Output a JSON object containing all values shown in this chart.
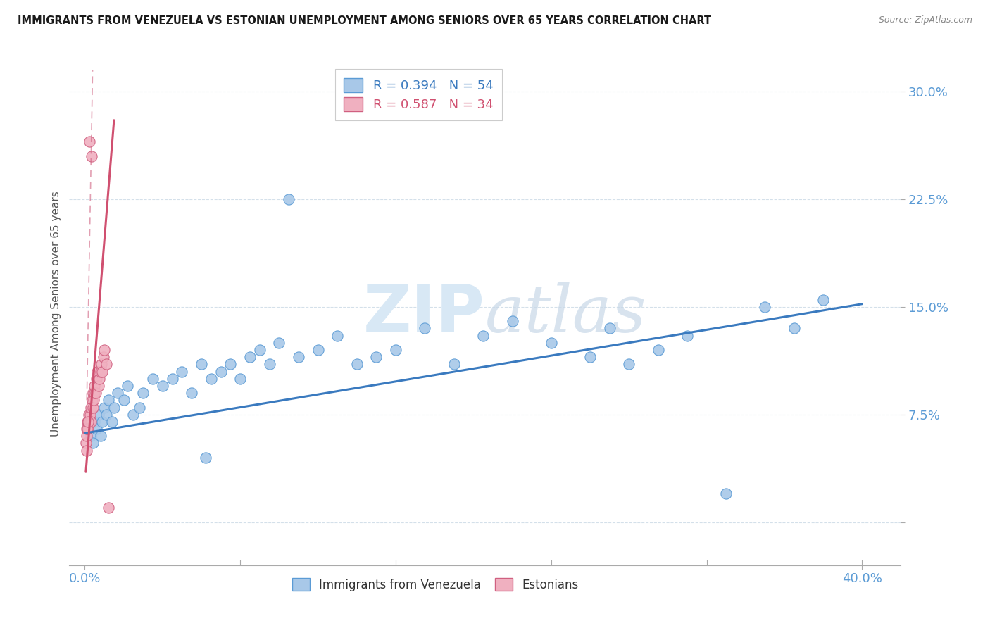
{
  "title": "IMMIGRANTS FROM VENEZUELA VS ESTONIAN UNEMPLOYMENT AMONG SENIORS OVER 65 YEARS CORRELATION CHART",
  "source": "Source: ZipAtlas.com",
  "ylabel": "Unemployment Among Seniors over 65 years",
  "xlim": [
    -0.8,
    42.0
  ],
  "ylim": [
    -3.0,
    32.0
  ],
  "ytick_values": [
    0.0,
    7.5,
    15.0,
    22.5,
    30.0
  ],
  "ytick_labels": [
    "",
    "7.5%",
    "15.0%",
    "22.5%",
    "30.0%"
  ],
  "xtick_values": [
    0.0,
    40.0
  ],
  "xtick_labels": [
    "0.0%",
    "40.0%"
  ],
  "legend_r1": "R = 0.394",
  "legend_n1": "N = 54",
  "legend_r2": "R = 0.587",
  "legend_n2": "N = 34",
  "color_blue_fill": "#a8c8e8",
  "color_blue_edge": "#5b9bd5",
  "color_pink_fill": "#f0b0c0",
  "color_pink_edge": "#d06080",
  "color_blue_line": "#3a7abf",
  "color_pink_line": "#d05070",
  "color_grid": "#d0dde8",
  "color_tick": "#5b9bd5",
  "watermark_color": "#d8e8f5",
  "blue_trend_x0": 0.0,
  "blue_trend_y0": 6.2,
  "blue_trend_x1": 40.0,
  "blue_trend_y1": 15.2,
  "pink_trend_x0": 0.05,
  "pink_trend_y0": 3.5,
  "pink_trend_x1": 1.5,
  "pink_trend_y1": 28.0,
  "blue_x": [
    0.3,
    0.4,
    0.5,
    0.6,
    0.7,
    0.8,
    0.9,
    1.0,
    1.1,
    1.2,
    1.4,
    1.5,
    1.7,
    2.0,
    2.2,
    2.5,
    2.8,
    3.0,
    3.5,
    4.0,
    4.5,
    5.0,
    5.5,
    6.0,
    6.5,
    7.0,
    7.5,
    8.0,
    8.5,
    9.0,
    9.5,
    10.0,
    11.0,
    12.0,
    13.0,
    14.0,
    15.0,
    16.0,
    17.5,
    19.0,
    20.5,
    22.0,
    24.0,
    26.0,
    27.0,
    28.0,
    29.5,
    31.0,
    33.0,
    35.0,
    36.5,
    38.0,
    10.5,
    6.2
  ],
  "blue_y": [
    6.0,
    5.5,
    7.0,
    6.5,
    7.5,
    6.0,
    7.0,
    8.0,
    7.5,
    8.5,
    7.0,
    8.0,
    9.0,
    8.5,
    9.5,
    7.5,
    8.0,
    9.0,
    10.0,
    9.5,
    10.0,
    10.5,
    9.0,
    11.0,
    10.0,
    10.5,
    11.0,
    10.0,
    11.5,
    12.0,
    11.0,
    12.5,
    11.5,
    12.0,
    13.0,
    11.0,
    11.5,
    12.0,
    13.5,
    11.0,
    13.0,
    14.0,
    12.5,
    11.5,
    13.5,
    11.0,
    12.0,
    13.0,
    2.0,
    15.0,
    13.5,
    15.5,
    22.5,
    4.5
  ],
  "pink_x": [
    0.05,
    0.08,
    0.1,
    0.12,
    0.15,
    0.18,
    0.2,
    0.22,
    0.25,
    0.28,
    0.3,
    0.32,
    0.35,
    0.38,
    0.4,
    0.42,
    0.45,
    0.48,
    0.5,
    0.55,
    0.6,
    0.65,
    0.7,
    0.75,
    0.8,
    0.85,
    0.9,
    0.95,
    1.0,
    1.1,
    1.2,
    0.13,
    0.17,
    0.08
  ],
  "pink_y": [
    5.5,
    6.0,
    6.5,
    7.0,
    7.0,
    6.5,
    7.5,
    7.0,
    26.5,
    7.5,
    7.0,
    8.0,
    25.5,
    8.5,
    8.0,
    9.0,
    8.5,
    9.0,
    9.5,
    9.0,
    10.0,
    10.5,
    9.5,
    10.0,
    10.5,
    11.0,
    10.5,
    11.5,
    12.0,
    11.0,
    1.0,
    6.5,
    7.0,
    5.0
  ]
}
